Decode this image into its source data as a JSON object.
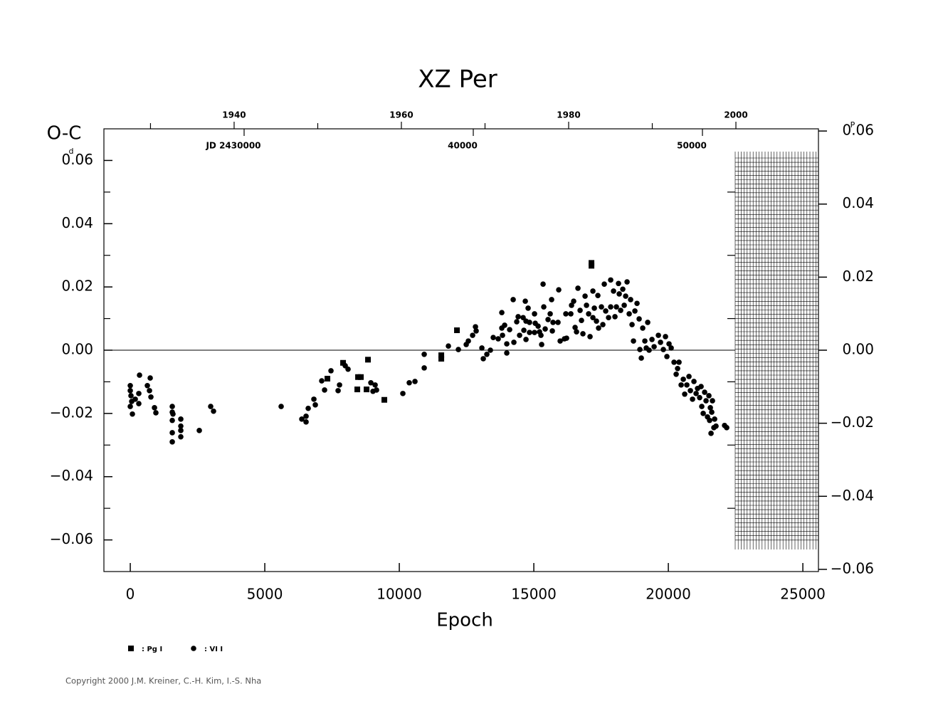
{
  "chart_data": {
    "type": "scatter",
    "title": "XZ Per",
    "x_label": "Epoch",
    "y_label": "O-C",
    "y_unit": "d",
    "y2_unit": "P",
    "copyright": "Copyright 2000 J.M. Kreiner, C.-H. Kim, I.-S. Nha",
    "xlim": [
      -980,
      25580
    ],
    "xticks": [
      0,
      5000,
      10000,
      15000,
      20000,
      25000
    ],
    "ylim": [
      -0.07,
      0.07
    ],
    "yticks": [
      {
        "value": 0.06,
        "label": "0.06"
      },
      {
        "value": 0.04,
        "label": "0.04"
      },
      {
        "value": 0.02,
        "label": "0.02"
      },
      {
        "value": 0,
        "label": "0.00"
      },
      {
        "value": -0.02,
        "label": "−0.02"
      },
      {
        "value": -0.04,
        "label": "−0.04"
      },
      {
        "value": -0.06,
        "label": "−0.06"
      }
    ],
    "y_minor_ticks": [
      0.05,
      0.03,
      0.01,
      -0.01,
      -0.03,
      -0.05
    ],
    "y2lim": [
      -0.0606,
      0.0606
    ],
    "y2ticks": [
      {
        "value": 0.06,
        "label": "0.06"
      },
      {
        "value": 0.04,
        "label": "0.04"
      },
      {
        "value": 0.02,
        "label": "0.02"
      },
      {
        "value": 0,
        "label": "0.00"
      },
      {
        "value": -0.02,
        "label": "−0.02"
      },
      {
        "value": -0.04,
        "label": "−0.04"
      },
      {
        "value": -0.06,
        "label": "−0.06"
      }
    ],
    "year_lim": [
      1924.43,
      2009.87
    ],
    "year_ticks": [
      1940,
      1960,
      1980,
      2000
    ],
    "year_minor_ticks": [
      1930,
      1950,
      1970,
      1990
    ],
    "jd_lim": [
      2423882,
      2455062
    ],
    "jd_ticks": [
      {
        "value": 2430000,
        "label": "JD 2430000"
      },
      {
        "value": 2440000,
        "label": "40000"
      },
      {
        "value": 2450000,
        "label": "50000"
      }
    ],
    "series": [
      {
        "name": ": Pg I",
        "marker": "square",
        "color": "#000000",
        "x": [
          12143,
          11561,
          11561,
          7328,
          7910,
          8466,
          8571,
          8439,
          8783,
          8836,
          9444,
          17143,
          17143
        ],
        "values": [
          0.0063,
          -0.0027,
          -0.0016,
          -0.009,
          -0.004,
          -0.0085,
          -0.0085,
          -0.0124,
          -0.0124,
          -0.003,
          -0.0157,
          0.0276,
          0.0267
        ]
      },
      {
        "name": ": VI I",
        "marker": "circle",
        "color": "#000000",
        "x": [
          0,
          0,
          26,
          53,
          0,
          79,
          185,
          317,
          344,
          317,
          635,
          714,
          741,
          767,
          900,
          952,
          1561,
          1561,
          1561,
          1561,
          1561,
          1587,
          1878,
          1878,
          1878,
          1878,
          2566,
          2989,
          3095,
          5608,
          6376,
          6534,
          6534,
          6614,
          6825,
          6878,
          7116,
          7222,
          7460,
          7725,
          7778,
          7989,
          8095,
          8942,
          9101,
          9153,
          9021,
          10132,
          10370,
          10582,
          10926,
          10926,
          11825,
          12196,
          12487,
          12566,
          12725,
          12857,
          12831,
          13069,
          13122,
          13254,
          13386,
          13492,
          13677,
          13810,
          13810,
          13836,
          13915,
          13995,
          13995,
          14101,
          14233,
          14259,
          14365,
          14418,
          14471,
          14603,
          14630,
          14683,
          14709,
          14709,
          14788,
          14841,
          14841,
          15026,
          15026,
          15053,
          15159,
          15212,
          15265,
          15291,
          15344,
          15370,
          15423,
          15529,
          15608,
          15661,
          15688,
          15714,
          15899,
          15926,
          15979,
          16138,
          16217,
          16190,
          16376,
          16402,
          16481,
          16534,
          16587,
          16640,
          16720,
          16772,
          16825,
          16905,
          16958,
          17037,
          17090,
          17196,
          17196,
          17249,
          17328,
          17381,
          17407,
          17513,
          17566,
          17619,
          17672,
          17778,
          17857,
          17857,
          17963,
          18016,
          18069,
          18148,
          18175,
          18228,
          18307,
          18360,
          18413,
          18466,
          18545,
          18598,
          18651,
          18704,
          18757,
          18836,
          18915,
          18942,
          18995,
          19048,
          19127,
          19180,
          19233,
          19286,
          19392,
          19471,
          19630,
          19709,
          19815,
          19894,
          19947,
          20026,
          20106,
          20212,
          20291,
          20344,
          20397,
          20476,
          20556,
          20608,
          20688,
          20767,
          20820,
          20899,
          20952,
          21032,
          21085,
          21164,
          21217,
          21243,
          21296,
          21349,
          21402,
          21455,
          21508,
          21534,
          21561,
          21587,
          21614,
          21640,
          21693,
          21720,
          21772,
          22090,
          22169
        ],
        "values": [
          -0.0112,
          -0.0128,
          -0.0144,
          -0.0162,
          -0.0178,
          -0.0202,
          -0.0155,
          -0.0137,
          -0.0079,
          -0.0169,
          -0.0112,
          -0.0128,
          -0.0088,
          -0.0148,
          -0.0182,
          -0.0198,
          -0.0178,
          -0.0196,
          -0.0222,
          -0.0261,
          -0.029,
          -0.0202,
          -0.0218,
          -0.024,
          -0.0254,
          -0.0274,
          -0.0254,
          -0.0178,
          -0.0193,
          -0.0178,
          -0.0218,
          -0.0209,
          -0.0227,
          -0.0184,
          -0.0155,
          -0.0173,
          -0.0097,
          -0.0126,
          -0.0065,
          -0.0128,
          -0.011,
          -0.0049,
          -0.006,
          -0.0103,
          -0.011,
          -0.0126,
          -0.013,
          -0.0137,
          -0.0103,
          -0.0099,
          -0.0013,
          -0.0056,
          0.0013,
          0.0002,
          0.0018,
          0.0029,
          0.0047,
          0.0061,
          0.0074,
          0.0007,
          -0.0027,
          -0.0013,
          0,
          0.004,
          0.0036,
          0.0119,
          0.007,
          0.0047,
          0.0079,
          -0.0009,
          0.002,
          0.0065,
          0.016,
          0.0025,
          0.009,
          0.0106,
          0.0047,
          0.0103,
          0.0063,
          0.0155,
          0.0092,
          0.0034,
          0.0133,
          0.0088,
          0.0056,
          0.0056,
          0.0115,
          0.0085,
          0.0076,
          0.0058,
          0.0047,
          0.0018,
          0.0209,
          0.0137,
          0.0067,
          0.0097,
          0.0115,
          0.016,
          0.0061,
          0.0088,
          0.0088,
          0.0191,
          0.0029,
          0.0036,
          0.0038,
          0.0115,
          0.0115,
          0.0142,
          0.0155,
          0.0072,
          0.0058,
          0.0196,
          0.0126,
          0.0094,
          0.0052,
          0.0171,
          0.0142,
          0.0115,
          0.0043,
          0.0187,
          0.0103,
          0.0133,
          0.0092,
          0.0173,
          0.007,
          0.0137,
          0.0081,
          0.0209,
          0.0124,
          0.0103,
          0.0137,
          0.0222,
          0.0187,
          0.0106,
          0.0137,
          0.0211,
          0.0178,
          0.0126,
          0.0193,
          0.0142,
          0.0171,
          0.0216,
          0.0115,
          0.016,
          0.0081,
          0.0029,
          0.0124,
          0.0148,
          0.0099,
          0.0002,
          -0.0025,
          0.007,
          0.0029,
          0.0007,
          0.0088,
          0,
          0.0034,
          0.0011,
          0.0047,
          0.0025,
          0.0002,
          0.0043,
          -0.002,
          0.002,
          0.0007,
          -0.0038,
          -0.0076,
          -0.0058,
          -0.0038,
          -0.011,
          -0.0092,
          -0.0139,
          -0.011,
          -0.0083,
          -0.0128,
          -0.0155,
          -0.0099,
          -0.0137,
          -0.0121,
          -0.015,
          -0.0115,
          -0.0178,
          -0.02,
          -0.0133,
          -0.016,
          -0.0211,
          -0.0144,
          -0.0222,
          -0.0182,
          -0.0263,
          -0.0196,
          -0.016,
          -0.0245,
          -0.0218,
          -0.024,
          -0.0238,
          -0.0245
        ]
      }
    ]
  }
}
